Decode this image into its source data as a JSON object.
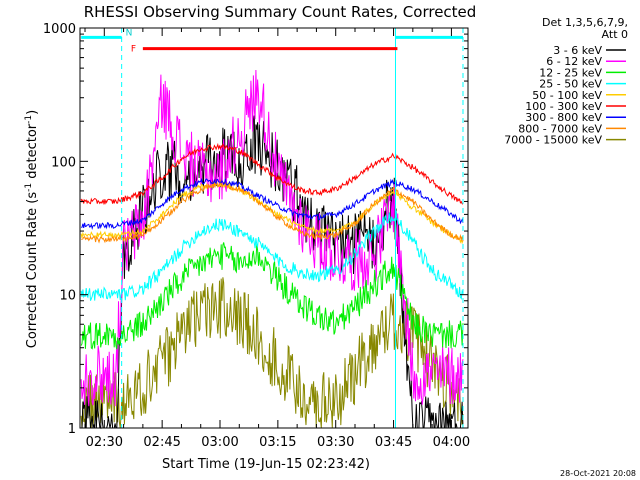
{
  "chart_data": {
    "type": "line",
    "title": "RHESSI Observing Summary Count Rates, Corrected",
    "xlabel": "Start Time (19-Jun-15 02:23:42)",
    "ylabel_prefix": "Corrected Count Rate (s",
    "ylabel_sup1": "-1",
    "ylabel_mid": " detector",
    "ylabel_sup2": "-1",
    "ylabel_suffix": ")",
    "yscale": "log",
    "ylim": [
      1,
      1000
    ],
    "xlim_minutes": [
      -6.3,
      94.3
    ],
    "x_tick_minutes": [
      0,
      15,
      30,
      45,
      60,
      75,
      90
    ],
    "x_tick_labels": [
      "02:30",
      "02:45",
      "03:00",
      "03:15",
      "03:30",
      "03:45",
      "04:00"
    ],
    "y_tick_values": [
      1,
      10,
      100,
      1000
    ],
    "y_tick_labels": [
      "1",
      "10",
      "100",
      "1000"
    ],
    "legend_header": [
      "Det 1,3,5,6,7,9,",
      "Att 0"
    ],
    "legend_placement": "right",
    "attenuator_flags": {
      "F_label": "F",
      "N_label": "N",
      "flare_flag_minutes": [
        10,
        76
      ],
      "night_minutes": [
        [
          -6,
          4.5
        ],
        [
          75.5,
          93
        ]
      ],
      "night_level": 850,
      "flare_level": 700
    },
    "timestamp": "28-Oct-2021 20:08",
    "x_minutes": [
      -6,
      3,
      5,
      10,
      15,
      20,
      25,
      30,
      35,
      40,
      45,
      50,
      55,
      60,
      65,
      70,
      75,
      80,
      85,
      90,
      93
    ],
    "series": [
      {
        "name": "3 - 6 keV",
        "color": "#000000",
        "values": [
          1,
          1,
          22,
          40,
          90,
          80,
          85,
          105,
          100,
          140,
          90,
          55,
          30,
          25,
          24,
          26,
          55,
          1,
          1,
          1,
          1
        ]
      },
      {
        "name": "6 - 12 keV",
        "color": "#ff00ff",
        "values": [
          2.5,
          2.5,
          22,
          35,
          300,
          120,
          80,
          80,
          160,
          350,
          80,
          40,
          25,
          20,
          18,
          20,
          50,
          2.5,
          2.5,
          2.5,
          2.5
        ]
      },
      {
        "name": "12 - 25 keV",
        "color": "#00ee00",
        "values": [
          5,
          5,
          5,
          6,
          9,
          13,
          17,
          20,
          17,
          20,
          13,
          9,
          7,
          6,
          8,
          12,
          16,
          6,
          5,
          5,
          5
        ]
      },
      {
        "name": "25 - 50 keV",
        "color": "#00ffff",
        "values": [
          10,
          10,
          10,
          11,
          15,
          22,
          30,
          34,
          30,
          24,
          18,
          15,
          14,
          15,
          20,
          30,
          40,
          25,
          15,
          12,
          10
        ]
      },
      {
        "name": "50 - 100 keV",
        "color": "#ffcc00",
        "values": [
          28,
          28,
          28,
          30,
          40,
          55,
          65,
          68,
          62,
          50,
          40,
          33,
          30,
          30,
          35,
          48,
          60,
          45,
          35,
          28,
          25
        ]
      },
      {
        "name": "100 - 300 keV",
        "color": "#ff0000",
        "values": [
          50,
          50,
          52,
          58,
          75,
          105,
          125,
          130,
          120,
          95,
          75,
          62,
          58,
          62,
          75,
          95,
          110,
          90,
          70,
          55,
          48
        ]
      },
      {
        "name": "300 - 800 keV",
        "color": "#0000ff",
        "values": [
          33,
          33,
          34,
          36,
          48,
          62,
          70,
          72,
          66,
          55,
          46,
          40,
          38,
          40,
          48,
          60,
          70,
          62,
          50,
          40,
          35
        ]
      },
      {
        "name": "800 - 7000 keV",
        "color": "#ff8800",
        "values": [
          26,
          26,
          26,
          28,
          36,
          50,
          62,
          68,
          62,
          50,
          38,
          30,
          27,
          28,
          34,
          48,
          62,
          50,
          36,
          28,
          26
        ]
      },
      {
        "name": "7000 - 15000 keV",
        "color": "#888800",
        "values": [
          1.5,
          1.5,
          1.7,
          2,
          3,
          5,
          7,
          8,
          7,
          5,
          3,
          2,
          1.5,
          1.6,
          2.5,
          4.5,
          6.5,
          5,
          3,
          2,
          1.5
        ]
      }
    ]
  }
}
